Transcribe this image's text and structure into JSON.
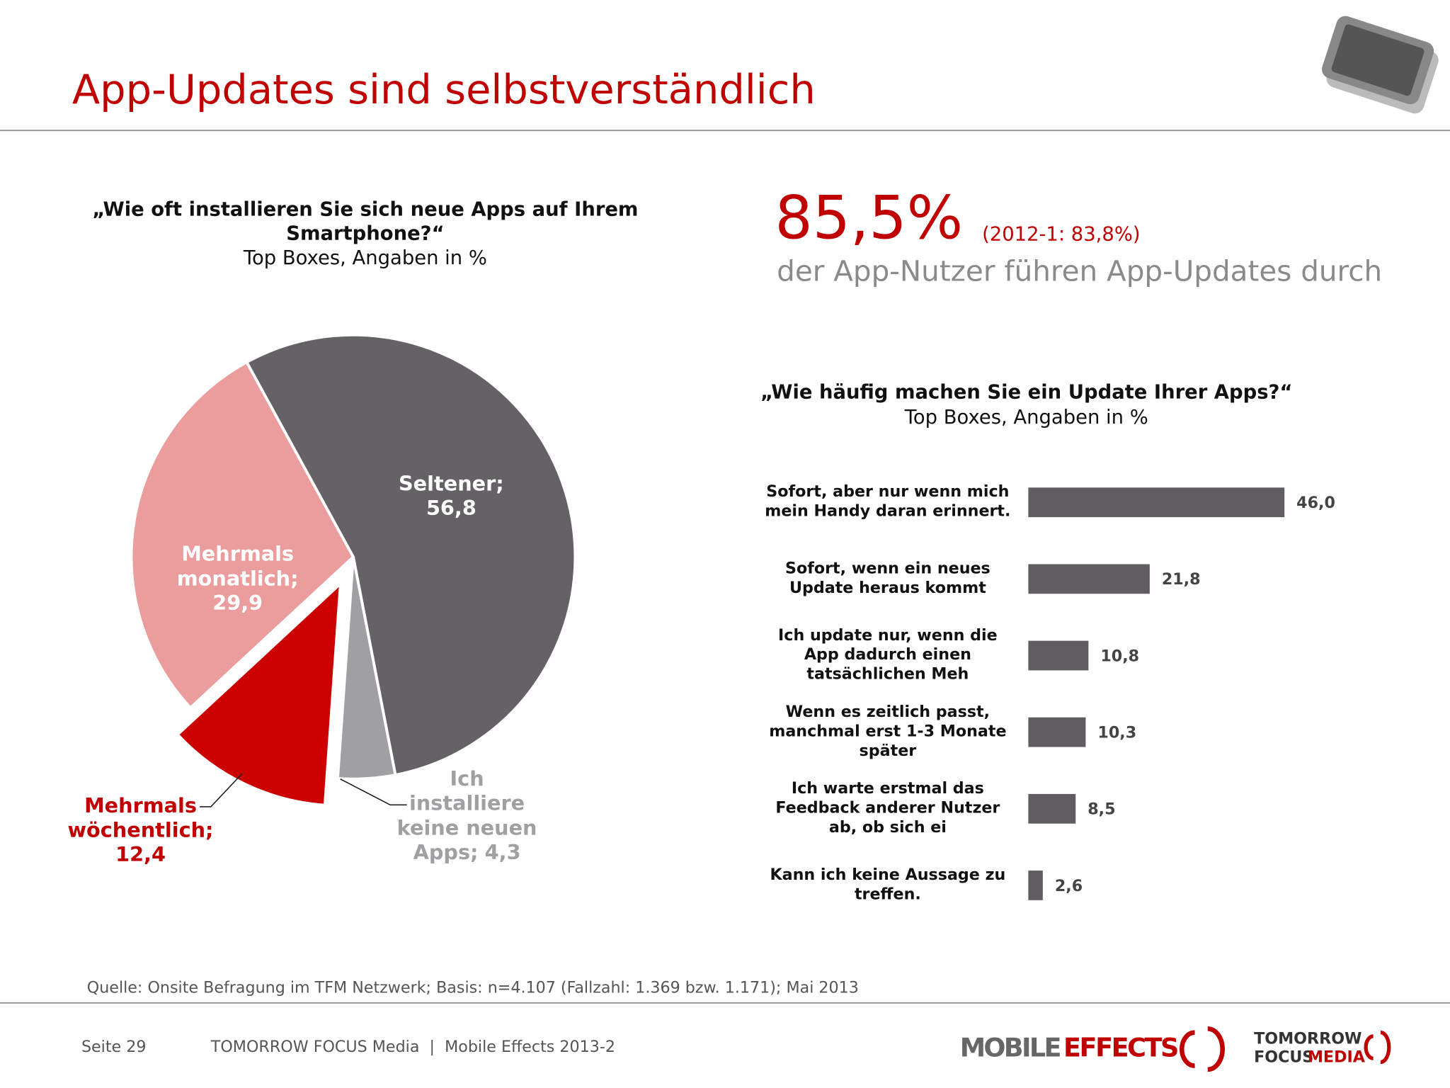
{
  "title": "App-Updates sind selbstverständlich",
  "chart_data": [
    {
      "type": "pie",
      "title": "„Wie oft installieren Sie sich neue Apps auf Ihrem\nSmartphone?“",
      "subtitle": "Top Boxes, Angaben in %",
      "categories": [
        "Seltener;",
        "Ich\ninstalliere\nkeine neuen\nApps;",
        "Mehrmals\nwöchentlich;",
        "Mehrmals\nmonatlich;"
      ],
      "values": [
        56.8,
        4.3,
        12.4,
        29.9
      ],
      "value_labels": [
        "56,8",
        "4,3",
        "12,4",
        "29,9"
      ],
      "colors": [
        "#646265",
        "#a09fa2",
        "#cc0000",
        "#eb9c9c"
      ]
    },
    {
      "type": "bar",
      "title": "„Wie häufig machen Sie ein Update Ihrer Apps?“",
      "subtitle": "Top Boxes, Angaben in %",
      "categories": [
        "Sofort, aber nur wenn mich\nmein Handy daran erinnert.",
        "Sofort, wenn ein neues\nUpdate heraus kommt",
        "Ich update nur, wenn die\nApp dadurch einen\ntatsächlichen Meh",
        "Wenn es zeitlich passt,\nmanchmal erst 1-3 Monate\nspäter",
        "Ich warte erstmal das\nFeedback anderer Nutzer\nab, ob sich ei",
        "Kann ich keine Aussage zu\ntreffen."
      ],
      "values": [
        46.0,
        21.8,
        10.8,
        10.3,
        8.5,
        2.6
      ],
      "value_labels": [
        "46,0",
        "21,8",
        "10,8",
        "10,3",
        "8,5",
        "2,6"
      ],
      "color": "#5f5d60"
    }
  ],
  "highlight": {
    "value": "85,5%",
    "comparison": "(2012-1: 83,8%)",
    "text": "der App-Nutzer führen App-Updates durch"
  },
  "source": "Quelle: Onsite Befragung im TFM Netzwerk; Basis: n=4.107 (Fallzahl: 1.369 bzw. 1.171); Mai 2013",
  "footer": {
    "page": "Seite 29",
    "publisher": "TOMORROW FOCUS Media  |  Mobile Effects 2013-2",
    "logo1a": "MOBILE",
    "logo1b": "EFFECTS",
    "logo2a": "TOMORROW",
    "logo2b": "FOCUS",
    "logo2c": "MEDIA"
  }
}
